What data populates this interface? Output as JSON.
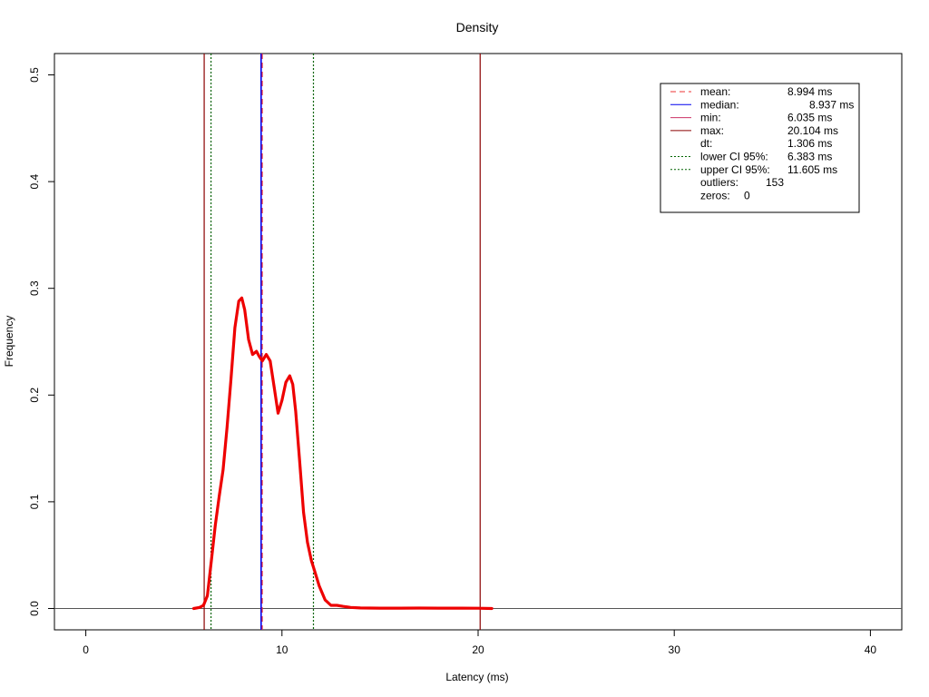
{
  "chart_data": {
    "type": "line",
    "title": "Density",
    "xlabel": "Latency (ms)",
    "ylabel": "Frequency",
    "xlim": [
      -1.6,
      41.6
    ],
    "ylim": [
      -0.02,
      0.52
    ],
    "x_ticks": [
      {
        "value": 0,
        "label": "0"
      },
      {
        "value": 10,
        "label": "10"
      },
      {
        "value": 20,
        "label": "20"
      },
      {
        "value": 30,
        "label": "30"
      },
      {
        "value": 40,
        "label": "40"
      }
    ],
    "y_ticks": [
      {
        "value": 0.0,
        "label": "0.0"
      },
      {
        "value": 0.1,
        "label": "0.1"
      },
      {
        "value": 0.2,
        "label": "0.2"
      },
      {
        "value": 0.3,
        "label": "0.3"
      },
      {
        "value": 0.4,
        "label": "0.4"
      },
      {
        "value": 0.5,
        "label": "0.5"
      }
    ],
    "baseline": 0,
    "grid": false,
    "legend_position": "top-right",
    "density": {
      "color": "#ee0000",
      "x": [
        5.5,
        5.8,
        6.0,
        6.2,
        6.4,
        6.6,
        6.8,
        7.0,
        7.2,
        7.4,
        7.6,
        7.8,
        7.95,
        8.1,
        8.3,
        8.5,
        8.7,
        8.85,
        9.0,
        9.2,
        9.4,
        9.6,
        9.8,
        10.0,
        10.2,
        10.4,
        10.55,
        10.7,
        10.9,
        11.1,
        11.3,
        11.5,
        11.7,
        11.9,
        12.2,
        12.5,
        12.8,
        13.1,
        13.5,
        14.0,
        15.0,
        16.0,
        17.0,
        18.0,
        19.0,
        20.0,
        20.7
      ],
      "y": [
        0.0,
        0.001,
        0.003,
        0.012,
        0.045,
        0.078,
        0.105,
        0.13,
        0.17,
        0.215,
        0.263,
        0.288,
        0.291,
        0.28,
        0.252,
        0.238,
        0.241,
        0.236,
        0.232,
        0.238,
        0.232,
        0.208,
        0.183,
        0.195,
        0.212,
        0.218,
        0.21,
        0.185,
        0.138,
        0.09,
        0.062,
        0.045,
        0.033,
        0.021,
        0.008,
        0.003,
        0.003,
        0.002,
        0.001,
        0.0005,
        0.0003,
        0.0003,
        0.0004,
        0.0003,
        0.0003,
        0.0002,
        0.0
      ]
    },
    "vlines": [
      {
        "name": "min",
        "x": 6.035,
        "color": "#8b0000",
        "dash": "solid"
      },
      {
        "name": "max",
        "x": 20.104,
        "color": "#8b0000",
        "dash": "solid"
      },
      {
        "name": "lower CI 95%",
        "x": 6.383,
        "color": "#006400",
        "dash": "dotted"
      },
      {
        "name": "upper CI 95%",
        "x": 11.605,
        "color": "#006400",
        "dash": "dotted"
      },
      {
        "name": "median",
        "x": 8.937,
        "color": "#0000ee",
        "dash": "solid"
      },
      {
        "name": "mean",
        "x": 8.994,
        "color": "#ee3333",
        "dash": "dashed"
      }
    ],
    "legend": [
      {
        "label": "mean:",
        "value": "8.994 ms",
        "line": "dashed",
        "color": "#ee3333"
      },
      {
        "label": "median:",
        "value": "8.937 ms",
        "line": "solid",
        "color": "#0000ee"
      },
      {
        "label": "min:",
        "value": "6.035 ms",
        "line": "solid",
        "color": "#cc3366"
      },
      {
        "label": "max:",
        "value": "20.104 ms",
        "line": "solid",
        "color": "#8b0000"
      },
      {
        "label": "dt:",
        "value": "1.306 ms",
        "line": "none",
        "color": "#000000"
      },
      {
        "label": "lower CI 95%:",
        "value": "6.383 ms",
        "line": "dotted",
        "color": "#006400"
      },
      {
        "label": "upper CI 95%:",
        "value": "11.605 ms",
        "line": "dotted",
        "color": "#006400"
      },
      {
        "label": "outliers:",
        "value": "153",
        "line": "none",
        "color": "#000000"
      },
      {
        "label": "zeros:",
        "value": "0",
        "line": "none",
        "color": "#000000"
      }
    ]
  }
}
